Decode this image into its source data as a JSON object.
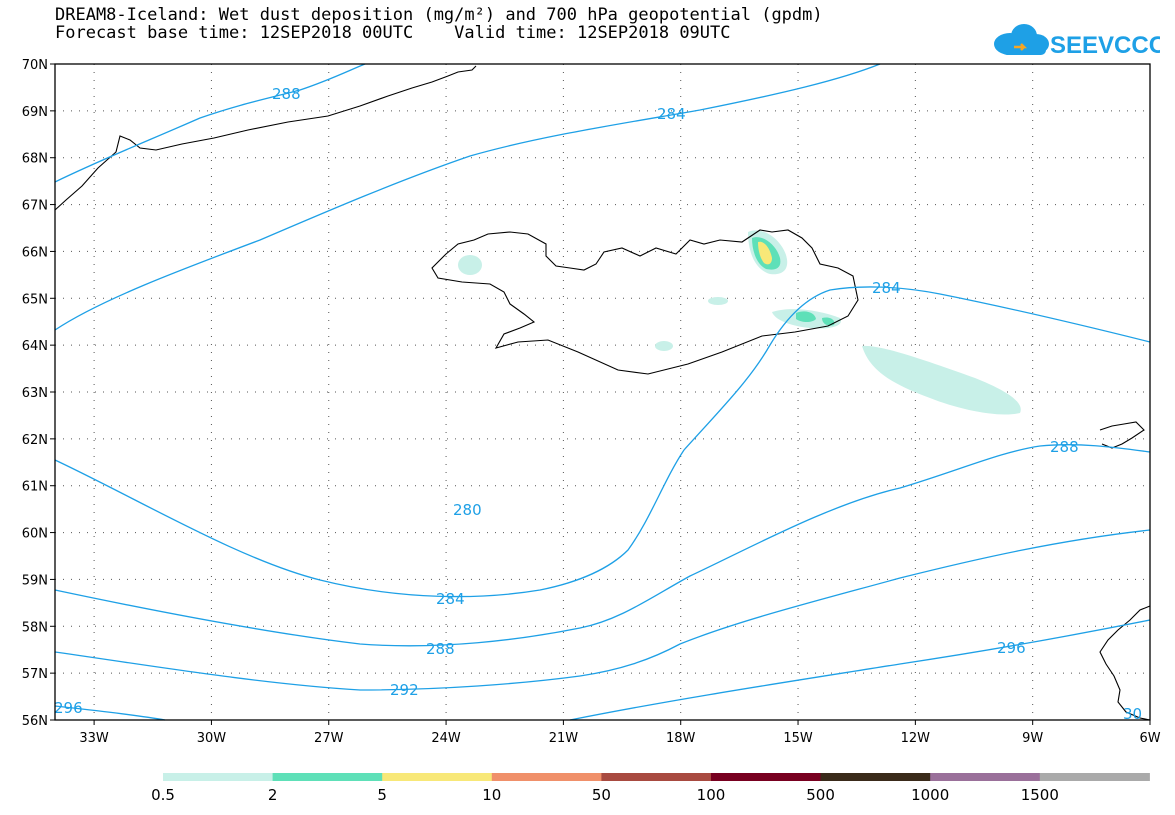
{
  "header": {
    "title_line1": "DREAM8-Iceland: Wet dust deposition (mg/m²) and 700 hPa geopotential (gpdm)",
    "title_line2": "Forecast base time: 12SEP2018 00UTC    Valid time: 12SEP2018 09UTC",
    "logo_text": "SEEVCCC",
    "logo_icon": "cloud-icon"
  },
  "map": {
    "lon_ticks": [
      "33W",
      "30W",
      "27W",
      "24W",
      "21W",
      "18W",
      "15W",
      "12W",
      "9W",
      "6W"
    ],
    "lat_ticks": [
      "70N",
      "69N",
      "68N",
      "67N",
      "66N",
      "65N",
      "64N",
      "63N",
      "62N",
      "61N",
      "60N",
      "59N",
      "58N",
      "57N",
      "56N"
    ],
    "lon_range": [
      -34,
      -6
    ],
    "lat_range": [
      56,
      70
    ],
    "contour_color": "#1ea0e6",
    "contour_labels": [
      "288",
      "284",
      "284",
      "280",
      "284",
      "288",
      "288",
      "292",
      "296",
      "296",
      "30"
    ]
  },
  "legend": {
    "labels": [
      "0.5",
      "2",
      "5",
      "10",
      "50",
      "100",
      "500",
      "1000",
      "1500"
    ],
    "colors": [
      "#c8f0e8",
      "#5ee0b8",
      "#f8e878",
      "#f0906a",
      "#a84a40",
      "#780020",
      "#3a2a1a",
      "#9a709a",
      "#aaaaaa"
    ]
  }
}
